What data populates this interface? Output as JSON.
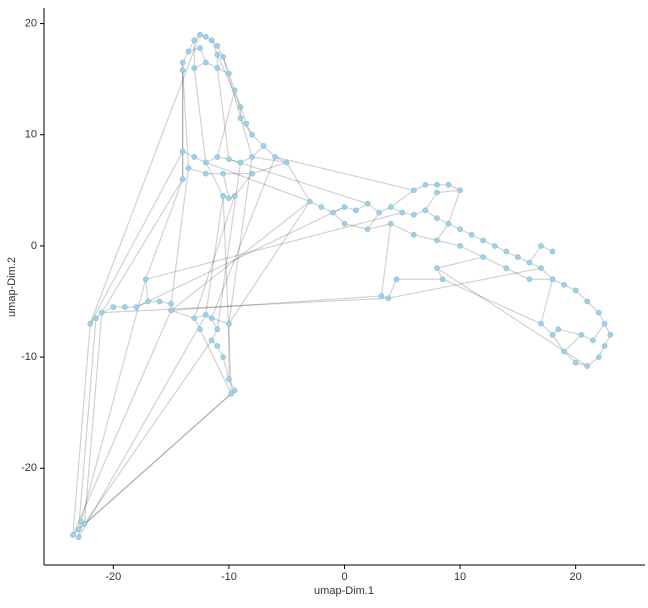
{
  "chart_data": {
    "type": "scatter",
    "xlabel": "umap-Dim.1",
    "ylabel": "umap-Dim.2",
    "xlim": [
      -26,
      26
    ],
    "ylim": [
      -28.7,
      21.4
    ],
    "xticks": [
      -20,
      -10,
      0,
      10,
      20
    ],
    "yticks": [
      -20,
      -10,
      0,
      10,
      20
    ],
    "color": "#9dd2e6",
    "edge_color": "#000000",
    "x": [
      -14,
      -13.5,
      -13,
      -12.5,
      -12,
      -11.5,
      -11,
      -10.5,
      -13,
      -12,
      -11,
      -10,
      -14,
      -12.5,
      -11,
      -9.5,
      -9,
      -8.5,
      -8,
      -7,
      -6,
      -5,
      -9,
      -14,
      -13,
      -12,
      -11,
      -10,
      -9,
      -8,
      -13.5,
      -12,
      -10.5,
      -8,
      -14,
      -10.5,
      -10,
      -9.5,
      -3,
      -2,
      -1,
      0,
      1,
      2,
      3,
      4,
      5,
      6,
      7,
      8,
      9,
      10,
      11,
      12,
      13,
      14,
      15,
      16,
      17,
      18,
      17,
      18,
      19,
      20,
      21,
      22,
      22.5,
      23,
      22.5,
      22,
      21,
      20,
      19,
      18,
      17,
      18.5,
      20.5,
      21.5,
      0,
      2,
      4,
      6,
      8,
      10,
      12,
      14,
      16,
      6,
      7,
      8,
      9,
      10,
      8,
      3.2,
      3.8,
      4.5,
      8.5,
      8,
      -22,
      -21.5,
      -21,
      -20,
      -19,
      -18,
      -17,
      -16,
      -15,
      -17.2,
      -15,
      -13,
      -12,
      -11.5,
      -11,
      -11.5,
      -11,
      -10.5,
      -10,
      -10,
      -9.5,
      -9.8,
      -12.5,
      -23.5,
      -23,
      -22.5,
      -23,
      -22.8
    ],
    "y": [
      16.5,
      17.5,
      18.5,
      19,
      18.8,
      18.5,
      18,
      17,
      16,
      16.5,
      16,
      15.5,
      15.8,
      17.8,
      17.2,
      14,
      12.5,
      11,
      10,
      9,
      8,
      7.5,
      11.5,
      8.5,
      8,
      7.5,
      8,
      7.8,
      7.5,
      8,
      7,
      6.5,
      6.5,
      6.5,
      6,
      4.5,
      4.3,
      4.5,
      4,
      3.5,
      3,
      3.5,
      3.2,
      3.8,
      3,
      3.5,
      3,
      2.8,
      3.2,
      2.5,
      2,
      1.5,
      1,
      0.5,
      0,
      -0.5,
      -1,
      -1.5,
      0,
      -0.5,
      -2,
      -3,
      -3.5,
      -4,
      -5,
      -6,
      -7,
      -8,
      -9,
      -10,
      -10.8,
      -10.5,
      -9.5,
      -8,
      -7,
      -7.5,
      -8,
      -8.5,
      2,
      1.5,
      2,
      1,
      0.5,
      0,
      -1,
      -2,
      -3,
      5,
      5.5,
      5.5,
      5.5,
      5,
      4.8,
      -4.5,
      -4.7,
      -3,
      -3,
      -2,
      -7,
      -6.5,
      -6,
      -5.5,
      -5.5,
      -5.5,
      -5,
      -5,
      -5.2,
      -3,
      -5.8,
      -6.5,
      -6.2,
      -6.5,
      -7.5,
      -8.5,
      -9,
      -10,
      -7,
      -12,
      -13,
      -13.3,
      -7.5,
      -26,
      -25.5,
      -25,
      -26.2,
      -24.8
    ],
    "edges": [
      [
        0,
        1
      ],
      [
        1,
        2
      ],
      [
        2,
        3
      ],
      [
        3,
        4
      ],
      [
        4,
        5
      ],
      [
        5,
        6
      ],
      [
        6,
        7
      ],
      [
        8,
        9
      ],
      [
        9,
        10
      ],
      [
        10,
        11
      ],
      [
        0,
        12
      ],
      [
        1,
        13
      ],
      [
        13,
        9
      ],
      [
        5,
        14
      ],
      [
        14,
        10
      ],
      [
        7,
        11
      ],
      [
        2,
        8
      ],
      [
        11,
        15
      ],
      [
        15,
        16
      ],
      [
        16,
        17
      ],
      [
        17,
        18
      ],
      [
        18,
        19
      ],
      [
        19,
        20
      ],
      [
        20,
        21
      ],
      [
        16,
        22
      ],
      [
        22,
        18
      ],
      [
        14,
        16
      ],
      [
        23,
        24
      ],
      [
        24,
        25
      ],
      [
        25,
        26
      ],
      [
        26,
        27
      ],
      [
        27,
        28
      ],
      [
        28,
        29
      ],
      [
        30,
        31
      ],
      [
        31,
        32
      ],
      [
        32,
        33
      ],
      [
        23,
        34
      ],
      [
        0,
        23
      ],
      [
        7,
        29
      ],
      [
        12,
        30
      ],
      [
        8,
        25
      ],
      [
        10,
        27
      ],
      [
        29,
        19
      ],
      [
        35,
        36
      ],
      [
        36,
        37
      ],
      [
        25,
        35
      ],
      [
        32,
        36
      ],
      [
        33,
        37
      ],
      [
        21,
        38
      ],
      [
        38,
        39
      ],
      [
        39,
        40
      ],
      [
        40,
        41
      ],
      [
        41,
        42
      ],
      [
        42,
        43
      ],
      [
        43,
        44
      ],
      [
        44,
        45
      ],
      [
        45,
        46
      ],
      [
        46,
        47
      ],
      [
        47,
        48
      ],
      [
        48,
        49
      ],
      [
        49,
        50
      ],
      [
        50,
        51
      ],
      [
        51,
        52
      ],
      [
        52,
        53
      ],
      [
        53,
        54
      ],
      [
        54,
        55
      ],
      [
        55,
        56
      ],
      [
        56,
        57
      ],
      [
        57,
        58
      ],
      [
        58,
        59
      ],
      [
        57,
        60
      ],
      [
        60,
        61
      ],
      [
        61,
        62
      ],
      [
        62,
        63
      ],
      [
        63,
        64
      ],
      [
        64,
        65
      ],
      [
        65,
        66
      ],
      [
        66,
        67
      ],
      [
        67,
        68
      ],
      [
        68,
        69
      ],
      [
        69,
        70
      ],
      [
        70,
        71
      ],
      [
        71,
        72
      ],
      [
        72,
        73
      ],
      [
        73,
        74
      ],
      [
        74,
        61
      ],
      [
        73,
        75
      ],
      [
        75,
        76
      ],
      [
        76,
        77
      ],
      [
        77,
        66
      ],
      [
        72,
        76
      ],
      [
        40,
        78
      ],
      [
        78,
        79
      ],
      [
        79,
        80
      ],
      [
        80,
        81
      ],
      [
        81,
        82
      ],
      [
        82,
        83
      ],
      [
        83,
        84
      ],
      [
        84,
        85
      ],
      [
        85,
        86
      ],
      [
        86,
        61
      ],
      [
        44,
        79
      ],
      [
        50,
        82
      ],
      [
        87,
        88
      ],
      [
        88,
        89
      ],
      [
        89,
        90
      ],
      [
        90,
        91
      ],
      [
        91,
        92
      ],
      [
        87,
        45
      ],
      [
        91,
        50
      ],
      [
        92,
        48
      ],
      [
        20,
        87
      ],
      [
        93,
        94
      ],
      [
        94,
        95
      ],
      [
        95,
        96
      ],
      [
        96,
        97
      ],
      [
        93,
        80
      ],
      [
        97,
        84
      ],
      [
        93,
        108
      ],
      [
        94,
        100
      ],
      [
        96,
        74
      ],
      [
        98,
        99
      ],
      [
        99,
        100
      ],
      [
        100,
        101
      ],
      [
        101,
        102
      ],
      [
        102,
        103
      ],
      [
        103,
        104
      ],
      [
        104,
        105
      ],
      [
        105,
        106
      ],
      [
        104,
        107
      ],
      [
        106,
        108
      ],
      [
        108,
        109
      ],
      [
        109,
        110
      ],
      [
        110,
        111
      ],
      [
        111,
        112
      ],
      [
        112,
        113
      ],
      [
        113,
        114
      ],
      [
        114,
        115
      ],
      [
        111,
        116
      ],
      [
        116,
        117
      ],
      [
        117,
        118
      ],
      [
        118,
        119
      ],
      [
        119,
        120
      ],
      [
        109,
        120
      ],
      [
        115,
        117
      ],
      [
        121,
        122
      ],
      [
        122,
        123
      ],
      [
        121,
        124
      ],
      [
        124,
        125
      ],
      [
        123,
        125
      ],
      [
        98,
        121
      ],
      [
        99,
        122
      ],
      [
        100,
        123
      ],
      [
        108,
        121
      ],
      [
        118,
        121
      ],
      [
        110,
        124
      ],
      [
        107,
        125
      ],
      [
        119,
        123
      ],
      [
        37,
        109
      ],
      [
        23,
        98
      ],
      [
        29,
        116
      ],
      [
        38,
        108
      ],
      [
        34,
        100
      ],
      [
        28,
        112
      ],
      [
        3,
        98
      ],
      [
        30,
        106
      ],
      [
        20,
        111
      ],
      [
        38,
        116
      ],
      [
        41,
        103
      ],
      [
        35,
        110
      ],
      [
        46,
        107
      ],
      [
        21,
        33
      ],
      [
        21,
        29
      ],
      [
        12,
        34
      ],
      [
        15,
        26
      ],
      [
        43,
        27
      ],
      [
        38,
        25
      ],
      [
        60,
        94
      ],
      [
        70,
        97
      ],
      [
        107,
        34
      ],
      [
        113,
        123
      ],
      [
        119,
        35
      ]
    ]
  }
}
